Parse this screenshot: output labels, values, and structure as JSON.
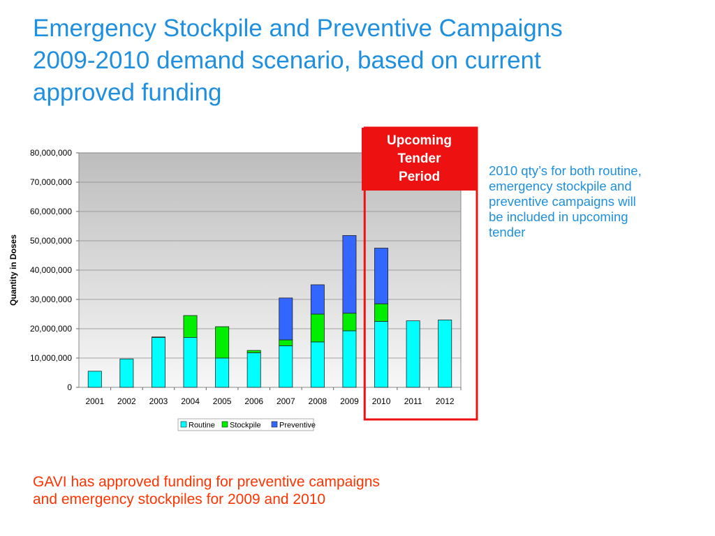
{
  "title": {
    "line1": "Emergency Stockpile and Preventive Campaigns",
    "line2": "2009-2010 demand scenario, based on current",
    "line3": "approved funding"
  },
  "callout": {
    "line1": "Upcoming",
    "line2": "Tender",
    "line3": "Period",
    "color": "#ee1111"
  },
  "note": {
    "line1": "2010 qty’s for both routine,",
    "line2": "emergency stockpile and",
    "line3": "preventive campaigns will",
    "line4": "be included in upcoming",
    "line5": "tender"
  },
  "footer_note": {
    "line1": "GAVI has approved funding for preventive campaigns",
    "line2": "and emergency stockpiles for 2009 and 2010"
  },
  "chart_data": {
    "type": "bar",
    "stacked": true,
    "categories": [
      "2001",
      "2002",
      "2003",
      "2004",
      "2005",
      "2006",
      "2007",
      "2008",
      "2009",
      "2010",
      "2011",
      "2012"
    ],
    "series": [
      {
        "name": "Routine",
        "color": "#00ffff",
        "values": [
          5500000,
          9700000,
          17000000,
          17000000,
          10000000,
          11800000,
          14200000,
          15500000,
          19300000,
          22500000,
          22700000,
          23000000
        ]
      },
      {
        "name": "Stockpile",
        "color": "#00ee00",
        "values": [
          0,
          0,
          200000,
          7500000,
          10700000,
          800000,
          2000000,
          9500000,
          6000000,
          6000000,
          0,
          0
        ]
      },
      {
        "name": "Preventive",
        "color": "#3366ff",
        "values": [
          0,
          0,
          0,
          0,
          0,
          0,
          14300000,
          10000000,
          26500000,
          19000000,
          0,
          0
        ]
      }
    ],
    "ylabel": "Quantity in Doses",
    "xlabel": "",
    "ylim": [
      0,
      80000000
    ],
    "yticks": [
      "0",
      "10,000,000",
      "20,000,000",
      "30,000,000",
      "40,000,000",
      "50,000,000",
      "60,000,000",
      "70,000,000",
      "80,000,000"
    ],
    "grid": true,
    "legend_position": "bottom",
    "highlight_category": "2010"
  }
}
